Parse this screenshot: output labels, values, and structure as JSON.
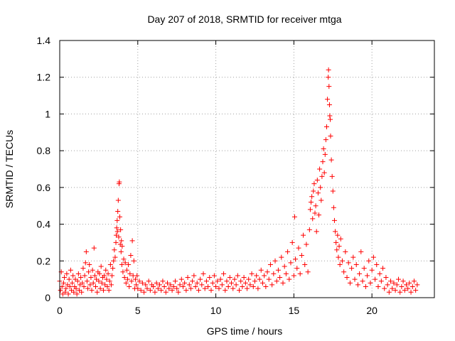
{
  "chart_data": {
    "type": "scatter",
    "title": "Day 207 of 2018, SRMTID for receiver mtga",
    "xlabel": "GPS time / hours",
    "ylabel": "SRMTID / TECUs",
    "xlim": [
      0,
      24
    ],
    "ylim": [
      0,
      1.4
    ],
    "xticks": [
      0,
      5,
      10,
      15,
      20
    ],
    "yticks": [
      0,
      0.2,
      0.4,
      0.6,
      0.8,
      1,
      1.2,
      1.4
    ],
    "xtick_labels": [
      "0",
      "5",
      "10",
      "15",
      "20"
    ],
    "ytick_labels": [
      "0",
      "0.2",
      "0.4",
      "0.6",
      "0.8",
      "1",
      "1.2",
      "1.4"
    ],
    "grid": true,
    "marker": "+",
    "marker_color": "#ff0000",
    "series": [
      {
        "name": "SRMTID",
        "points": [
          [
            0.0,
            0.09
          ],
          [
            0.05,
            0.04
          ],
          [
            0.1,
            0.14
          ],
          [
            0.15,
            0.06
          ],
          [
            0.2,
            0.02
          ],
          [
            0.25,
            0.08
          ],
          [
            0.3,
            0.11
          ],
          [
            0.35,
            0.03
          ],
          [
            0.4,
            0.05
          ],
          [
            0.45,
            0.13
          ],
          [
            0.5,
            0.07
          ],
          [
            0.55,
            0.02
          ],
          [
            0.6,
            0.1
          ],
          [
            0.65,
            0.06
          ],
          [
            0.7,
            0.15
          ],
          [
            0.75,
            0.04
          ],
          [
            0.8,
            0.08
          ],
          [
            0.85,
            0.12
          ],
          [
            0.9,
            0.03
          ],
          [
            0.95,
            0.06
          ],
          [
            1.0,
            0.1
          ],
          [
            1.05,
            0.05
          ],
          [
            1.1,
            0.02
          ],
          [
            1.15,
            0.09
          ],
          [
            1.2,
            0.13
          ],
          [
            1.25,
            0.04
          ],
          [
            1.3,
            0.07
          ],
          [
            1.35,
            0.11
          ],
          [
            1.4,
            0.03
          ],
          [
            1.45,
            0.08
          ],
          [
            1.5,
            0.16
          ],
          [
            1.55,
            0.06
          ],
          [
            1.6,
            0.12
          ],
          [
            1.65,
            0.19
          ],
          [
            1.7,
            0.25
          ],
          [
            1.75,
            0.09
          ],
          [
            1.8,
            0.05
          ],
          [
            1.85,
            0.14
          ],
          [
            1.9,
            0.18
          ],
          [
            1.95,
            0.07
          ],
          [
            2.0,
            0.11
          ],
          [
            2.05,
            0.04
          ],
          [
            2.1,
            0.15
          ],
          [
            2.15,
            0.08
          ],
          [
            2.2,
            0.27
          ],
          [
            2.25,
            0.12
          ],
          [
            2.3,
            0.06
          ],
          [
            2.35,
            0.1
          ],
          [
            2.4,
            0.03
          ],
          [
            2.45,
            0.14
          ],
          [
            2.5,
            0.09
          ],
          [
            2.55,
            0.13
          ],
          [
            2.6,
            0.05
          ],
          [
            2.65,
            0.17
          ],
          [
            2.7,
            0.08
          ],
          [
            2.75,
            0.11
          ],
          [
            2.8,
            0.04
          ],
          [
            2.85,
            0.12
          ],
          [
            2.9,
            0.07
          ],
          [
            2.95,
            0.15
          ],
          [
            3.0,
            0.1
          ],
          [
            3.05,
            0.06
          ],
          [
            3.1,
            0.13
          ],
          [
            3.15,
            0.04
          ],
          [
            3.2,
            0.09
          ],
          [
            3.25,
            0.18
          ],
          [
            3.3,
            0.07
          ],
          [
            3.35,
            0.12
          ],
          [
            3.4,
            0.16
          ],
          [
            3.45,
            0.2
          ],
          [
            3.5,
            0.26
          ],
          [
            3.55,
            0.22
          ],
          [
            3.6,
            0.3
          ],
          [
            3.62,
            0.34
          ],
          [
            3.65,
            0.38
          ],
          [
            3.68,
            0.42
          ],
          [
            3.7,
            0.36
          ],
          [
            3.72,
            0.47
          ],
          [
            3.75,
            0.53
          ],
          [
            3.78,
            0.33
          ],
          [
            3.8,
            0.62
          ],
          [
            3.82,
            0.63
          ],
          [
            3.85,
            0.44
          ],
          [
            3.88,
            0.29
          ],
          [
            3.9,
            0.37
          ],
          [
            3.93,
            0.25
          ],
          [
            3.95,
            0.31
          ],
          [
            3.98,
            0.18
          ],
          [
            4.0,
            0.28
          ],
          [
            4.05,
            0.14
          ],
          [
            4.1,
            0.21
          ],
          [
            4.15,
            0.11
          ],
          [
            4.2,
            0.19
          ],
          [
            4.25,
            0.08
          ],
          [
            4.3,
            0.15
          ],
          [
            4.35,
            0.1
          ],
          [
            4.4,
            0.18
          ],
          [
            4.45,
            0.06
          ],
          [
            4.5,
            0.13
          ],
          [
            4.55,
            0.23
          ],
          [
            4.6,
            0.09
          ],
          [
            4.65,
            0.31
          ],
          [
            4.7,
            0.12
          ],
          [
            4.75,
            0.2
          ],
          [
            4.8,
            0.05
          ],
          [
            4.85,
            0.1
          ],
          [
            4.9,
            0.07
          ],
          [
            4.95,
            0.12
          ],
          [
            5.0,
            0.05
          ],
          [
            5.1,
            0.09
          ],
          [
            5.2,
            0.04
          ],
          [
            5.3,
            0.08
          ],
          [
            5.4,
            0.03
          ],
          [
            5.5,
            0.07
          ],
          [
            5.6,
            0.05
          ],
          [
            5.7,
            0.09
          ],
          [
            5.8,
            0.04
          ],
          [
            5.9,
            0.07
          ],
          [
            6.0,
            0.06
          ],
          [
            6.1,
            0.03
          ],
          [
            6.2,
            0.08
          ],
          [
            6.3,
            0.05
          ],
          [
            6.4,
            0.07
          ],
          [
            6.5,
            0.04
          ],
          [
            6.6,
            0.09
          ],
          [
            6.7,
            0.06
          ],
          [
            6.8,
            0.03
          ],
          [
            6.9,
            0.08
          ],
          [
            7.0,
            0.05
          ],
          [
            7.1,
            0.07
          ],
          [
            7.2,
            0.04
          ],
          [
            7.3,
            0.06
          ],
          [
            7.4,
            0.09
          ],
          [
            7.5,
            0.05
          ],
          [
            7.6,
            0.03
          ],
          [
            7.7,
            0.07
          ],
          [
            7.8,
            0.1
          ],
          [
            7.9,
            0.06
          ],
          [
            8.0,
            0.08
          ],
          [
            8.1,
            0.04
          ],
          [
            8.2,
            0.11
          ],
          [
            8.3,
            0.07
          ],
          [
            8.4,
            0.05
          ],
          [
            8.5,
            0.09
          ],
          [
            8.6,
            0.12
          ],
          [
            8.7,
            0.06
          ],
          [
            8.8,
            0.08
          ],
          [
            8.9,
            0.04
          ],
          [
            9.0,
            0.1
          ],
          [
            9.1,
            0.07
          ],
          [
            9.2,
            0.13
          ],
          [
            9.3,
            0.05
          ],
          [
            9.4,
            0.09
          ],
          [
            9.5,
            0.06
          ],
          [
            9.6,
            0.11
          ],
          [
            9.7,
            0.04
          ],
          [
            9.8,
            0.08
          ],
          [
            9.9,
            0.12
          ],
          [
            10.0,
            0.06
          ],
          [
            10.1,
            0.09
          ],
          [
            10.2,
            0.05
          ],
          [
            10.3,
            0.1
          ],
          [
            10.4,
            0.07
          ],
          [
            10.5,
            0.13
          ],
          [
            10.6,
            0.04
          ],
          [
            10.7,
            0.09
          ],
          [
            10.8,
            0.06
          ],
          [
            10.9,
            0.11
          ],
          [
            11.0,
            0.08
          ],
          [
            11.1,
            0.05
          ],
          [
            11.2,
            0.1
          ],
          [
            11.3,
            0.07
          ],
          [
            11.4,
            0.12
          ],
          [
            11.5,
            0.04
          ],
          [
            11.6,
            0.09
          ],
          [
            11.7,
            0.06
          ],
          [
            11.8,
            0.11
          ],
          [
            11.9,
            0.08
          ],
          [
            12.0,
            0.05
          ],
          [
            12.1,
            0.1
          ],
          [
            12.2,
            0.07
          ],
          [
            12.3,
            0.13
          ],
          [
            12.4,
            0.06
          ],
          [
            12.5,
            0.09
          ],
          [
            12.6,
            0.12
          ],
          [
            12.7,
            0.05
          ],
          [
            12.8,
            0.1
          ],
          [
            12.9,
            0.15
          ],
          [
            13.0,
            0.08
          ],
          [
            13.1,
            0.12
          ],
          [
            13.2,
            0.06
          ],
          [
            13.3,
            0.14
          ],
          [
            13.4,
            0.1
          ],
          [
            13.5,
            0.18
          ],
          [
            13.6,
            0.07
          ],
          [
            13.7,
            0.13
          ],
          [
            13.8,
            0.2
          ],
          [
            13.9,
            0.09
          ],
          [
            14.0,
            0.15
          ],
          [
            14.1,
            0.11
          ],
          [
            14.2,
            0.22
          ],
          [
            14.3,
            0.08
          ],
          [
            14.4,
            0.17
          ],
          [
            14.5,
            0.13
          ],
          [
            14.6,
            0.25
          ],
          [
            14.7,
            0.1
          ],
          [
            14.8,
            0.19
          ],
          [
            14.9,
            0.3
          ],
          [
            15.0,
            0.12
          ],
          [
            15.05,
            0.44
          ],
          [
            15.1,
            0.21
          ],
          [
            15.2,
            0.16
          ],
          [
            15.3,
            0.27
          ],
          [
            15.4,
            0.13
          ],
          [
            15.5,
            0.23
          ],
          [
            15.6,
            0.34
          ],
          [
            15.7,
            0.18
          ],
          [
            15.8,
            0.29
          ],
          [
            15.9,
            0.14
          ],
          [
            16.0,
            0.37
          ],
          [
            16.05,
            0.48
          ],
          [
            16.1,
            0.52
          ],
          [
            16.15,
            0.55
          ],
          [
            16.2,
            0.43
          ],
          [
            16.25,
            0.58
          ],
          [
            16.3,
            0.62
          ],
          [
            16.35,
            0.46
          ],
          [
            16.4,
            0.5
          ],
          [
            16.45,
            0.36
          ],
          [
            16.5,
            0.64
          ],
          [
            16.55,
            0.57
          ],
          [
            16.6,
            0.45
          ],
          [
            16.65,
            0.7
          ],
          [
            16.7,
            0.6
          ],
          [
            16.75,
            0.53
          ],
          [
            16.8,
            0.66
          ],
          [
            16.85,
            0.74
          ],
          [
            16.9,
            0.81
          ],
          [
            16.95,
            0.68
          ],
          [
            17.0,
            0.78
          ],
          [
            17.05,
            0.86
          ],
          [
            17.1,
            0.93
          ],
          [
            17.15,
            1.08
          ],
          [
            17.2,
            1.2
          ],
          [
            17.22,
            1.24
          ],
          [
            17.25,
            1.15
          ],
          [
            17.28,
            1.05
          ],
          [
            17.3,
            0.99
          ],
          [
            17.33,
            0.97
          ],
          [
            17.35,
            0.88
          ],
          [
            17.4,
            0.75
          ],
          [
            17.45,
            0.66
          ],
          [
            17.5,
            0.58
          ],
          [
            17.55,
            0.49
          ],
          [
            17.6,
            0.42
          ],
          [
            17.65,
            0.36
          ],
          [
            17.7,
            0.3
          ],
          [
            17.75,
            0.26
          ],
          [
            17.8,
            0.34
          ],
          [
            17.85,
            0.22
          ],
          [
            17.9,
            0.28
          ],
          [
            17.95,
            0.18
          ],
          [
            18.0,
            0.32
          ],
          [
            18.1,
            0.2
          ],
          [
            18.2,
            0.14
          ],
          [
            18.3,
            0.25
          ],
          [
            18.4,
            0.11
          ],
          [
            18.5,
            0.19
          ],
          [
            18.6,
            0.08
          ],
          [
            18.7,
            0.16
          ],
          [
            18.8,
            0.22
          ],
          [
            18.9,
            0.1
          ],
          [
            19.0,
            0.18
          ],
          [
            19.1,
            0.07
          ],
          [
            19.2,
            0.13
          ],
          [
            19.3,
            0.25
          ],
          [
            19.4,
            0.09
          ],
          [
            19.5,
            0.16
          ],
          [
            19.6,
            0.06
          ],
          [
            19.7,
            0.12
          ],
          [
            19.8,
            0.2
          ],
          [
            19.9,
            0.08
          ],
          [
            20.0,
            0.15
          ],
          [
            20.1,
            0.22
          ],
          [
            20.2,
            0.1
          ],
          [
            20.3,
            0.18
          ],
          [
            20.4,
            0.06
          ],
          [
            20.5,
            0.13
          ],
          [
            20.6,
            0.09
          ],
          [
            20.7,
            0.16
          ],
          [
            20.8,
            0.05
          ],
          [
            20.9,
            0.11
          ],
          [
            21.0,
            0.07
          ],
          [
            21.1,
            0.03
          ],
          [
            21.2,
            0.09
          ],
          [
            21.3,
            0.05
          ],
          [
            21.4,
            0.08
          ],
          [
            21.5,
            0.04
          ],
          [
            21.6,
            0.07
          ],
          [
            21.7,
            0.1
          ],
          [
            21.8,
            0.03
          ],
          [
            21.9,
            0.06
          ],
          [
            22.0,
            0.09
          ],
          [
            22.1,
            0.04
          ],
          [
            22.2,
            0.07
          ],
          [
            22.3,
            0.05
          ],
          [
            22.4,
            0.08
          ],
          [
            22.5,
            0.03
          ],
          [
            22.6,
            0.06
          ],
          [
            22.7,
            0.09
          ],
          [
            22.8,
            0.04
          ],
          [
            22.9,
            0.07
          ]
        ]
      }
    ]
  }
}
